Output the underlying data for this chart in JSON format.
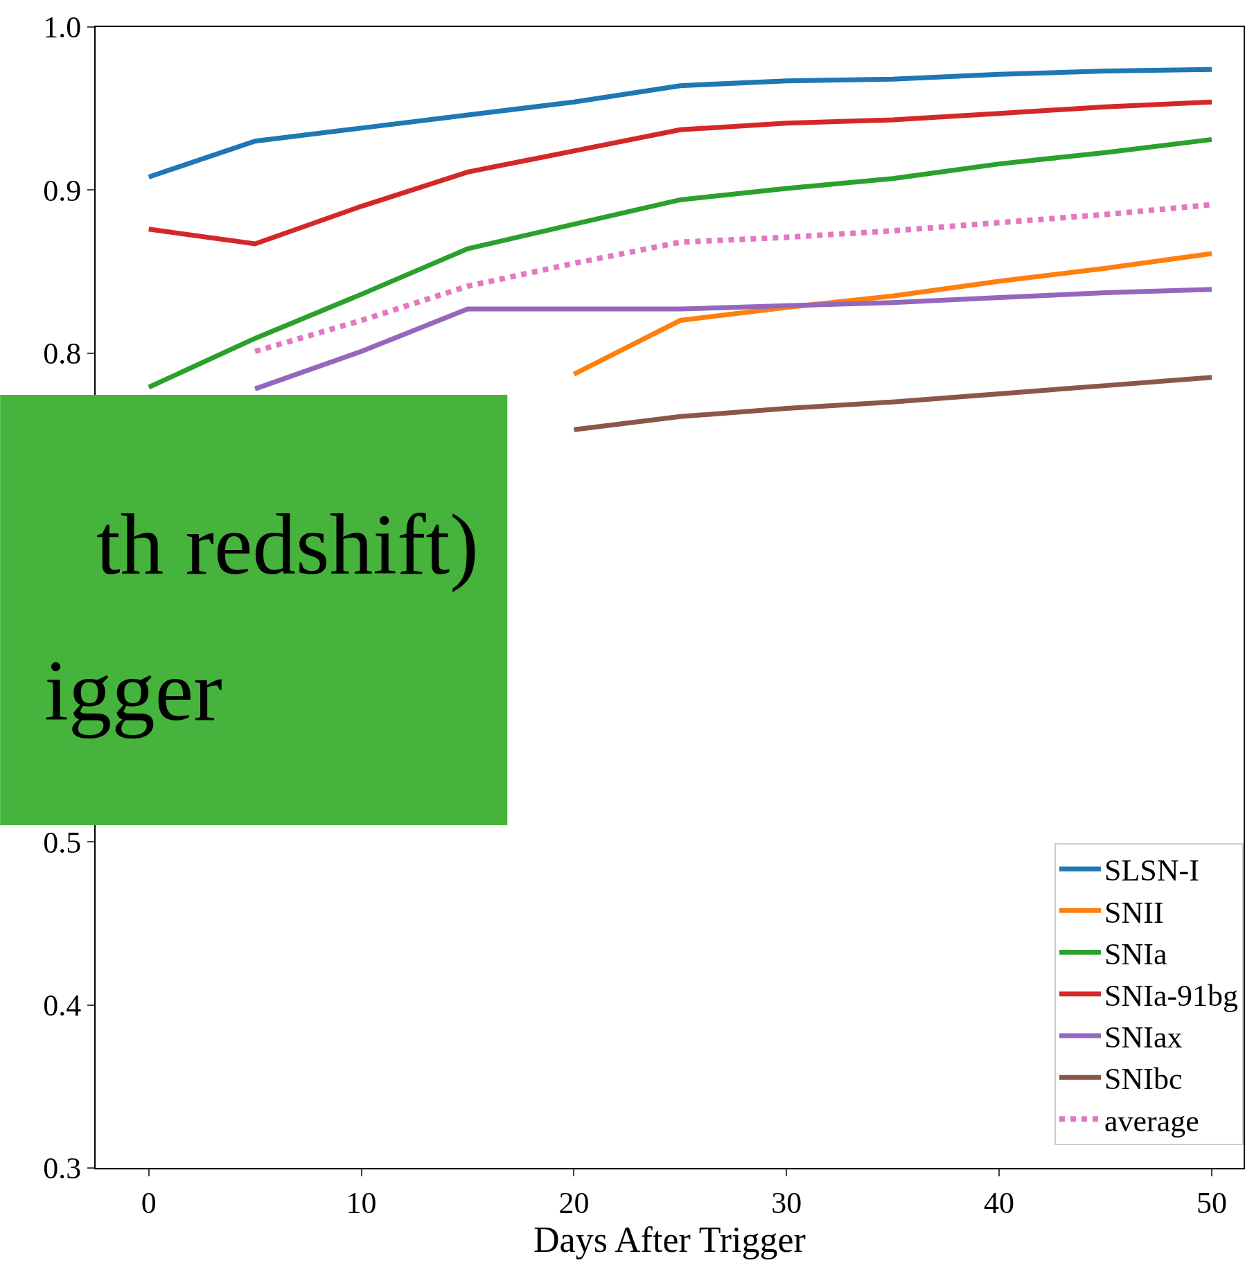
{
  "chart_data": {
    "type": "line",
    "xlabel": "Days After Trigger",
    "x": [
      0,
      5,
      10,
      15,
      20,
      25,
      30,
      35,
      40,
      45,
      50
    ],
    "series": [
      {
        "name": "SLSN-I",
        "color": "#1f77b4",
        "values": [
          0.908,
          0.93,
          0.938,
          0.946,
          0.954,
          0.964,
          0.967,
          0.968,
          0.971,
          0.973,
          0.974
        ]
      },
      {
        "name": "SNII",
        "color": "#ff7f0e",
        "values": [
          null,
          null,
          null,
          null,
          0.787,
          0.82,
          0.828,
          0.835,
          0.844,
          0.852,
          0.861
        ]
      },
      {
        "name": "SNIa",
        "color": "#2ca02c",
        "values": [
          0.779,
          0.809,
          0.836,
          0.864,
          0.879,
          0.894,
          0.901,
          0.907,
          0.916,
          0.923,
          0.931
        ]
      },
      {
        "name": "SNIa-91bg",
        "color": "#d62728",
        "values": [
          0.876,
          0.867,
          0.89,
          0.911,
          0.924,
          0.937,
          0.941,
          0.943,
          0.947,
          0.951,
          0.954
        ]
      },
      {
        "name": "SNIax",
        "color": "#9467bd",
        "values": [
          null,
          0.778,
          0.801,
          0.827,
          0.827,
          0.827,
          0.829,
          0.831,
          0.834,
          0.837,
          0.839
        ]
      },
      {
        "name": "SNIbc",
        "color": "#8c564b",
        "values": [
          null,
          null,
          null,
          null,
          0.753,
          0.761,
          0.766,
          0.77,
          0.775,
          0.78,
          0.785
        ]
      },
      {
        "name": "average",
        "color": "#e377c2",
        "line_style": "dotted",
        "values": [
          null,
          0.801,
          0.82,
          0.841,
          0.855,
          0.868,
          0.871,
          0.875,
          0.88,
          0.885,
          0.891
        ]
      }
    ],
    "xlim": [
      -2.5,
      51.5
    ],
    "ylim": [
      0.3,
      1.0
    ],
    "xticks": [
      0,
      10,
      20,
      30,
      40,
      50
    ],
    "yticks": [
      0.3,
      0.4,
      0.5,
      0.8,
      0.9,
      {
        "value": 1.0,
        "label": "1.0"
      }
    ],
    "legend": "bottom right",
    "line_style": "solid",
    "marker": "none",
    "annotations": [
      "th redshift)",
      "igger"
    ]
  }
}
